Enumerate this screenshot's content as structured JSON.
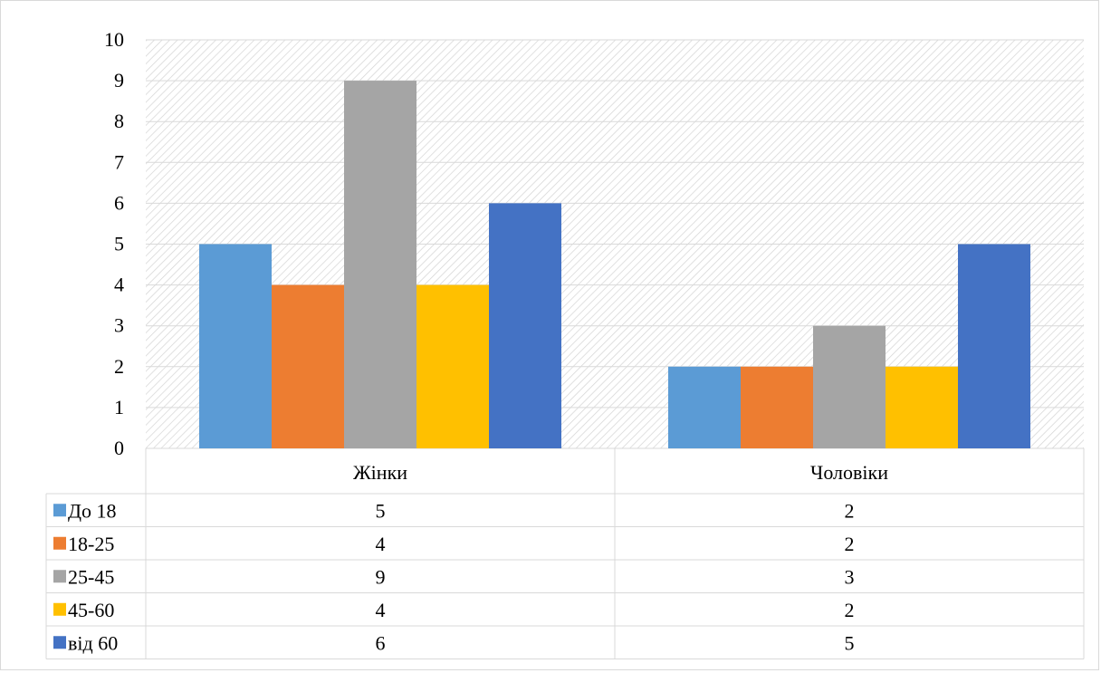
{
  "chart_data": {
    "type": "bar",
    "categories": [
      "Жінки",
      "Чоловіки"
    ],
    "series": [
      {
        "name": "До 18",
        "values": [
          5,
          2
        ],
        "color": "#5b9bd5"
      },
      {
        "name": "18-25",
        "values": [
          4,
          2
        ],
        "color": "#ed7d31"
      },
      {
        "name": "25-45",
        "values": [
          9,
          3
        ],
        "color": "#a5a5a5"
      },
      {
        "name": "45-60",
        "values": [
          4,
          2
        ],
        "color": "#ffc000"
      },
      {
        "name": "від 60",
        "values": [
          6,
          5
        ],
        "color": "#4472c4"
      }
    ],
    "ylim": [
      0,
      10
    ],
    "yticks": [
      0,
      1,
      2,
      3,
      4,
      5,
      6,
      7,
      8,
      9,
      10
    ],
    "title": "",
    "xlabel": "",
    "ylabel": "",
    "grid": true,
    "legend": "data-table"
  }
}
